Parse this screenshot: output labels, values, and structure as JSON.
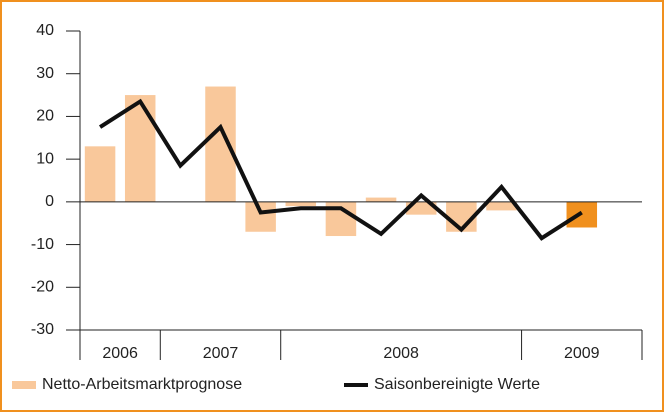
{
  "chart_data": {
    "type": "bar+line",
    "categories": [
      null,
      null,
      null,
      null,
      null,
      null,
      null,
      null,
      null,
      null,
      null,
      null,
      null,
      null
    ],
    "year_groups": [
      {
        "label": "2006",
        "count": 2
      },
      {
        "label": "2007",
        "count": 3
      },
      {
        "label": "2008",
        "count": 6
      },
      {
        "label": "2009",
        "count": 3
      }
    ],
    "series": [
      {
        "name": "Netto-Arbeitsmarktprognose",
        "kind": "bar",
        "color": "#f9c89b",
        "colors": [
          "#f9c89b",
          "#f9c89b",
          "#f9c89b",
          "#f9c89b",
          "#f9c89b",
          "#f9c89b",
          "#f9c89b",
          "#f9c89b",
          "#f9c89b",
          "#f9c89b",
          "#f9c89b",
          "#f9c89b",
          "#f0901e",
          "#f9c89b"
        ],
        "values": [
          13,
          25,
          0,
          27,
          -7,
          -1,
          -8,
          1,
          -3,
          -7,
          -2,
          0,
          -6,
          0
        ]
      },
      {
        "name": "Saisonbereinigte Werte",
        "kind": "line",
        "color": "#111111",
        "values": [
          17.5,
          23.5,
          8.5,
          17.5,
          -2.5,
          -1.5,
          -1.5,
          -7.5,
          1.5,
          -6.5,
          3.5,
          -8.5,
          -2.5,
          null
        ]
      }
    ],
    "ylim": [
      -30,
      40
    ],
    "yticks": [
      -30,
      -20,
      -10,
      0,
      10,
      20,
      30,
      40
    ]
  }
}
